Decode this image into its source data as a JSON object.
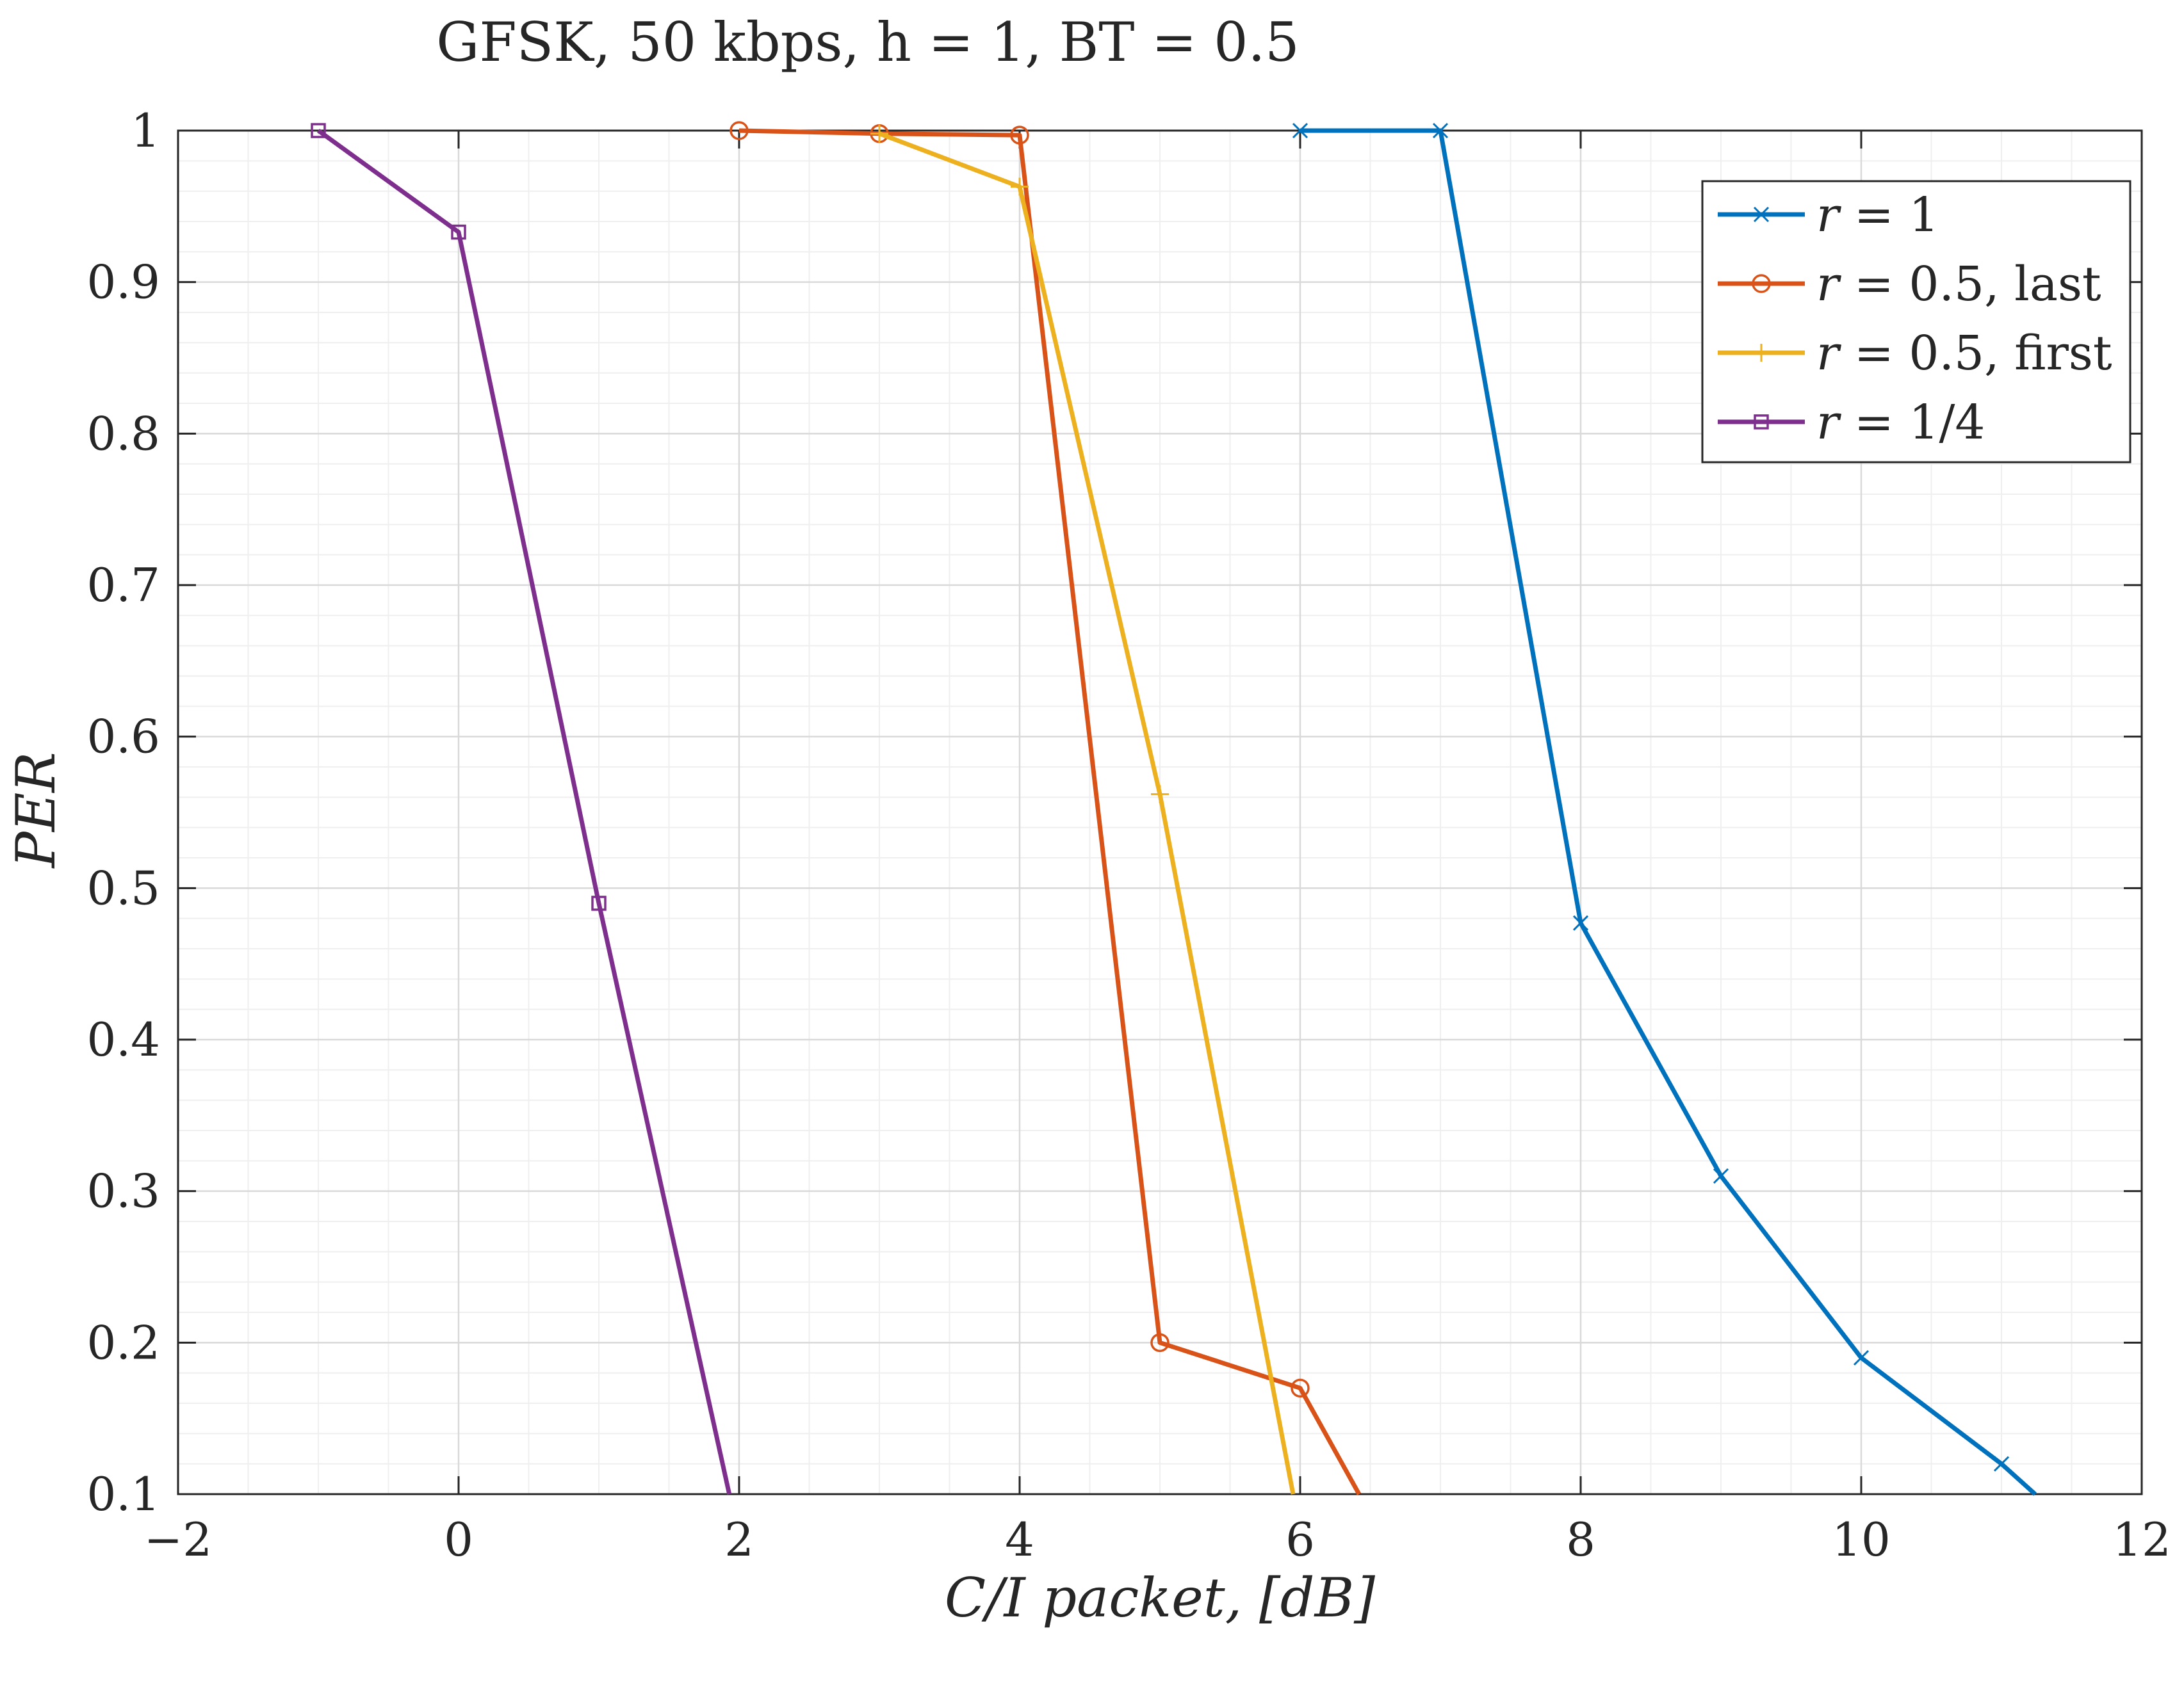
{
  "chart_data": {
    "type": "line",
    "title": "GFSK, 50 kbps, h = 1, BT = 0.5",
    "xlabel": "C/I packet, [dB]",
    "ylabel": "PER",
    "xlim": [
      -2,
      12
    ],
    "ylim": [
      0.1,
      1
    ],
    "xticks": [
      -2,
      0,
      2,
      4,
      6,
      8,
      10,
      12
    ],
    "xtick_labels": [
      "−2",
      "0",
      "2",
      "4",
      "6",
      "8",
      "10",
      "12"
    ],
    "yticks": [
      0.1,
      0.2,
      0.3,
      0.4,
      0.5,
      0.6,
      0.7,
      0.8,
      0.9,
      1
    ],
    "ytick_labels": [
      "0.1",
      "0.2",
      "0.3",
      "0.4",
      "0.5",
      "0.6",
      "0.7",
      "0.8",
      "0.9",
      "1"
    ],
    "grid": true,
    "minor_grid": true,
    "legend_position": "top-right",
    "series": [
      {
        "name": "r = 1",
        "color": "#0072BD",
        "marker": "x",
        "x": [
          6,
          7,
          8,
          9,
          10,
          11,
          11.24
        ],
        "y": [
          1.0,
          1.0,
          0.477,
          0.31,
          0.19,
          0.12,
          0.1
        ]
      },
      {
        "name": "r = 0.5, last",
        "color": "#D95319",
        "marker": "circle",
        "x": [
          2,
          3,
          4,
          5,
          6,
          6.42
        ],
        "y": [
          1.0,
          0.998,
          0.997,
          0.2,
          0.17,
          0.1
        ]
      },
      {
        "name": "r = 0.5, first",
        "color": "#EDB120",
        "marker": "plus",
        "x": [
          3,
          4,
          5,
          5.95
        ],
        "y": [
          0.998,
          0.963,
          0.562,
          0.1
        ]
      },
      {
        "name": "r = 1/4",
        "color": "#7E2F8E",
        "marker": "square",
        "x": [
          -1,
          0,
          1,
          1.93
        ],
        "y": [
          1.0,
          0.933,
          0.49,
          0.1
        ]
      }
    ]
  }
}
